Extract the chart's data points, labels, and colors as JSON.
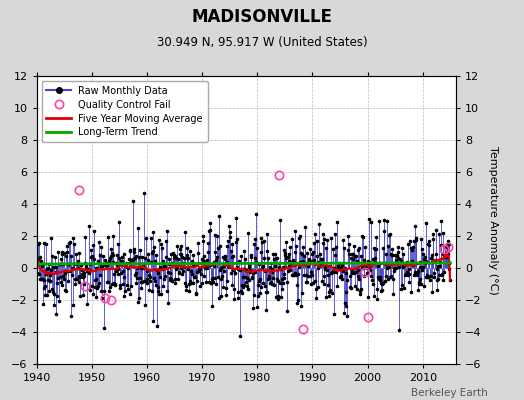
{
  "title": "MADISONVILLE",
  "subtitle": "30.949 N, 95.917 W (United States)",
  "ylabel": "Temperature Anomaly (°C)",
  "watermark": "Berkeley Earth",
  "xlim": [
    1940,
    2016
  ],
  "ylim": [
    -6,
    12
  ],
  "yticks": [
    -6,
    -4,
    -2,
    0,
    2,
    4,
    6,
    8,
    10,
    12
  ],
  "xticks": [
    1940,
    1950,
    1960,
    1970,
    1980,
    1990,
    2000,
    2010
  ],
  "bg_color": "#d8d8d8",
  "plot_bg_color": "#ffffff",
  "raw_color": "#4444cc",
  "raw_dot_color": "#000000",
  "qc_color": "#ff44aa",
  "ma_color": "#dd0000",
  "trend_color": "#00aa00",
  "trend_intercept": 0.3,
  "trend_slope": 0.0,
  "seed": 42,
  "start_year": 1940,
  "end_year": 2015,
  "qc_fails": [
    [
      1947.6,
      4.9
    ],
    [
      1948.7,
      -1.1
    ],
    [
      1952.3,
      -1.85
    ],
    [
      1953.4,
      -2.0
    ],
    [
      1983.9,
      5.8
    ],
    [
      1988.3,
      -3.8
    ],
    [
      1999.5,
      -0.25
    ],
    [
      2000.1,
      -3.05
    ],
    [
      2013.9,
      1.2
    ],
    [
      2014.5,
      1.3
    ]
  ]
}
